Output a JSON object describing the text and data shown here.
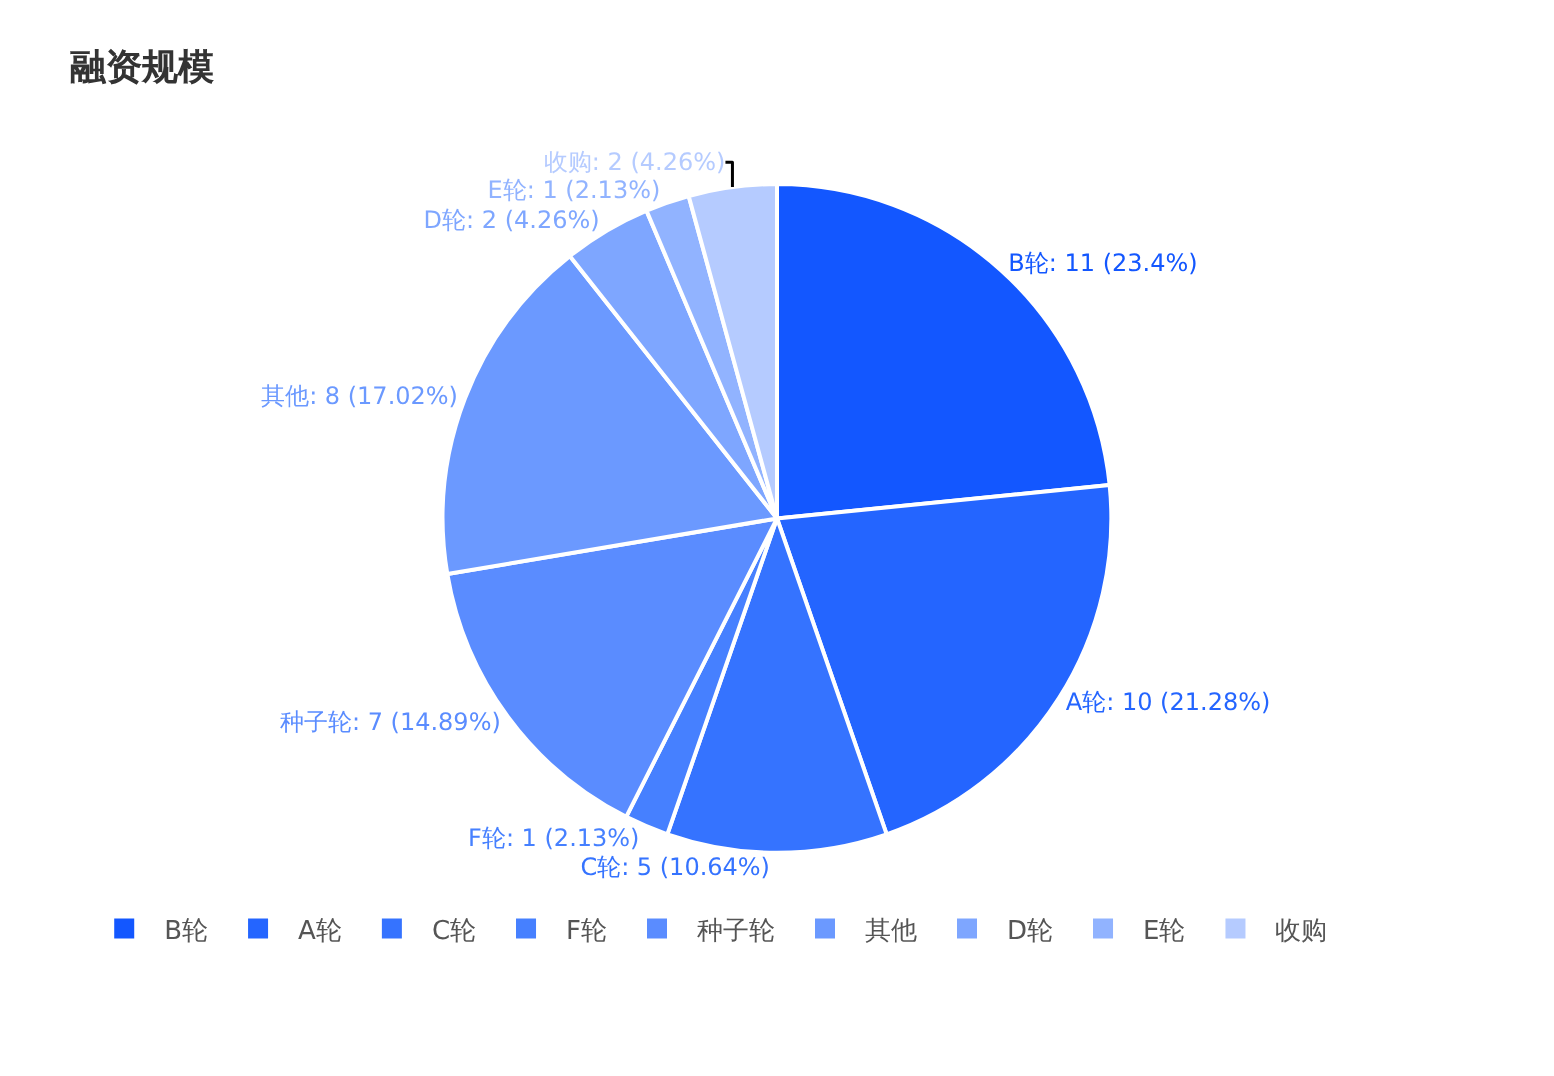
{
  "chart_data": {
    "type": "pie",
    "title": "融资规模",
    "categories": [
      "B轮",
      "A轮",
      "C轮",
      "F轮",
      "种子轮",
      "其他",
      "D轮",
      "E轮",
      "收购"
    ],
    "values": [
      11,
      10,
      5,
      1,
      7,
      8,
      2,
      1,
      2
    ],
    "colors": [
      "#1357ff",
      "#2465ff",
      "#3573ff",
      "#4680ff",
      "#5a8cff",
      "#6b99ff",
      "#7ea6ff",
      "#91b3ff",
      "#b5cbff"
    ],
    "value_labels": [
      "B轮: 11 (23.4%)",
      "A轮: 10 (21.28%)",
      "C轮: 5 (10.64%)",
      "F轮: 1 (2.13%)",
      "种子轮: 7 (14.89%)",
      "其他: 8 (17.02%)",
      "D轮: 2 (4.26%)",
      "E轮: 1 (2.13%)",
      "收购: 2 (4.26%)"
    ],
    "legend": "bottom"
  }
}
